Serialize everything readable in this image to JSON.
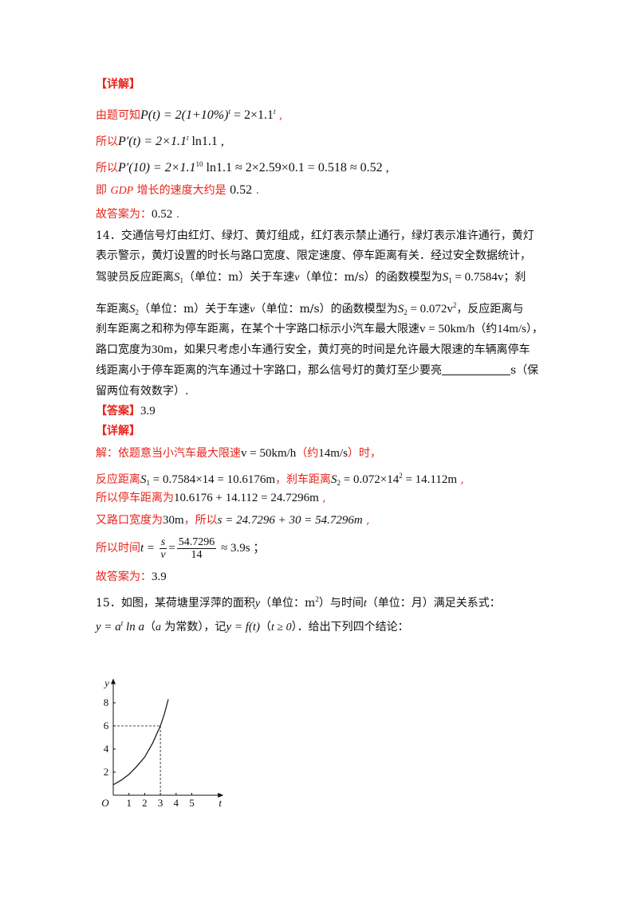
{
  "detail1": {
    "heading": "【详解】",
    "l1_pre": "由题可知",
    "l1_math": "P(t) = 2(1+10%)",
    "l1_sup": "t",
    "l1_mid": " = 2×1.1",
    "l1_sup2": "t",
    "l1_end": " ,",
    "l2_pre": "所以",
    "l2_math": "P′(t) = 2×1.1",
    "l2_sup": "t",
    "l2_end": " ln1.1 ,",
    "l3_pre": "所以",
    "l3_math": "P′(10) = 2×1.1",
    "l3_sup": "10",
    "l3_end": " ln1.1 ≈ 2×2.59×0.1 = 0.518 ≈ 0.52 ,",
    "l4_pre": "即 ",
    "l4_gdp": "GDP",
    "l4_mid": " 增长的速度大约是 ",
    "l4_val": "0.52",
    "l4_end": " .",
    "l5_pre": "故答案为：",
    "l5_val": "0.52",
    "l5_end": " ."
  },
  "q14": {
    "l1": "14．交通信号灯由红灯、绿灯、黄灯组成，红灯表示禁止通行，绿灯表示准许通行，黄灯",
    "l2": "表示警示，黄灯设置的时长与路口宽度、限定速度、停车距离有关．经过安全数据统计，",
    "l3_a": "驾驶员反应距离",
    "l3_s1": "S",
    "l3_s1sub": "1",
    "l3_b": "（单位：m）关于车速",
    "l3_v": "v",
    "l3_c": "（单位：m/s）的函数模型为",
    "l3_f": "S",
    "l3_fsub": "1",
    "l3_fval": " = 0.7584v",
    "l3_d": "；刹",
    "l4_a": "车距离",
    "l4_s2": "S",
    "l4_s2sub": "2",
    "l4_b": "（单位：m）关于车速",
    "l4_v": "v",
    "l4_c": "（单位：m/s）的函数模型为",
    "l4_f": "S",
    "l4_fsub": "2",
    "l4_fval": " = 0.072v",
    "l4_fsup": "2",
    "l4_d": "，反应距离与",
    "l5_a": "刹车距离之和称为停车距离，在某个十字路口标示小汽车最大限速",
    "l5_v": "v = 50km/h",
    "l5_b": "（约",
    "l5_c": "14m/s",
    "l5_d": "），",
    "l6_a": "路口宽度为",
    "l6_b": "30m",
    "l6_c": "，如果只考虑小车通行安全，黄灯亮的时间是允许最大限速的车辆离停车",
    "l7_a": "线距离小于停车距离的汽车通过十字路口，那么信号灯的黄灯至少要亮",
    "l7_b": "s（保",
    "l8": "留两位有效数字）.",
    "ans_label": "【答案】",
    "ans_val": "3.9"
  },
  "detail2": {
    "heading": "【详解】",
    "l1_a": "解：依题意当小汽车最大限速",
    "l1_v": "v = 50km/h",
    "l1_b": "（约",
    "l1_c": "14m/s",
    "l1_d": "）时，",
    "l2_a": "反应距离",
    "l2_m": "S",
    "l2_sub": "1",
    "l2_val": " = 0.7584×14 = 10.6176m",
    "l2_b": "，刹车距离",
    "l2_m2": "S",
    "l2_sub2": "2",
    "l2_val2": " = 0.072×14",
    "l2_sup2": "2",
    "l2_val2b": " = 14.112m",
    "l2_end": " ,",
    "l3_a": "所以停车距离为",
    "l3_val": "10.6176 + 14.112 = 24.7296m",
    "l3_end": " ,",
    "l4_a": "又路口宽度为",
    "l4_b": "30m",
    "l4_c": "，所以",
    "l4_val": "s = 24.7296 + 30 = 54.7296m",
    "l4_end": " ,",
    "l5_a": "所以时间",
    "l5_t": "t = ",
    "l5_n1": "s",
    "l5_d1": "v",
    "l5_n2": "54.7296",
    "l5_d2": "14",
    "l5_end": " ≈ 3.9s ；",
    "l6_a": "故答案为：",
    "l6_val": "3.9"
  },
  "q15": {
    "l1_a": "15．如图，某荷塘里浮萍的面积",
    "l1_y": "y",
    "l1_b": "（单位：m",
    "l1_sup": "2",
    "l1_c": "）与时间",
    "l1_t": "t",
    "l1_d": "（单位：月）满足关系式：",
    "l2_a": "y = a",
    "l2_sup": "t",
    "l2_b": " ln a",
    "l2_c": "（",
    "l2_d": "a",
    "l2_e": " 为常数），记",
    "l2_f": "y = f(t)",
    "l2_g": "（",
    "l2_h": "t ≥ 0",
    "l2_i": "）．给出下列四个结论："
  },
  "chart_data": {
    "type": "line",
    "xlabel": "t",
    "ylabel": "y",
    "origin_label": "O",
    "x_ticks": [
      "1",
      "2",
      "3",
      "4",
      "5"
    ],
    "y_ticks": [
      "2",
      "4",
      "6",
      "8"
    ],
    "xlim": [
      0,
      6
    ],
    "ylim": [
      0,
      9
    ],
    "series": [
      {
        "x": [
          0,
          0.5,
          1,
          1.5,
          2,
          2.5,
          3,
          3.25,
          3.5
        ],
        "y": [
          0.9,
          1.3,
          1.8,
          2.5,
          3.3,
          4.5,
          6.0,
          7.0,
          8.3
        ]
      }
    ],
    "highlight_point": {
      "x": 3,
      "y": 6
    }
  }
}
